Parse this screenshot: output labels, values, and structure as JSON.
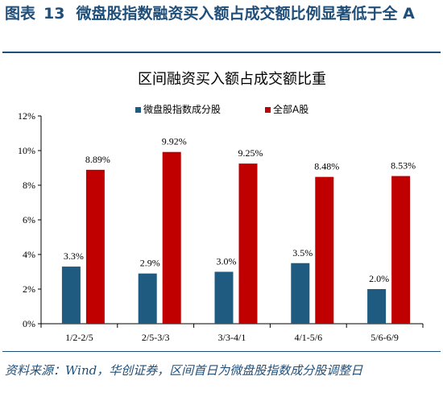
{
  "figure": {
    "label": "图表",
    "number": "13",
    "title": "微盘股指数融资买入额占成交额比例显著低于全 A"
  },
  "source": "资料来源：Wind，华创证券，区间首日为微盘股指数成分股调整日",
  "colors": {
    "series1": "#1f5b80",
    "series2": "#c00000",
    "header": "#1f4e79"
  },
  "chart_data": {
    "type": "bar",
    "title": "区间融资买入额占成交额比重",
    "categories": [
      "1/2-2/5",
      "2/5-3/3",
      "3/3-4/1",
      "4/1-5/6",
      "5/6-6/9"
    ],
    "series": [
      {
        "name": "微盘股指数成分股",
        "values": [
          3.3,
          2.9,
          3.0,
          3.5,
          2.0
        ],
        "labels": [
          "3.3%",
          "2.9%",
          "3.0%",
          "3.5%",
          "2.0%"
        ]
      },
      {
        "name": "全部A股",
        "values": [
          8.89,
          9.92,
          9.25,
          8.48,
          8.53
        ],
        "labels": [
          "8.89%",
          "9.92%",
          "9.25%",
          "8.48%",
          "8.53%"
        ]
      }
    ],
    "ylim": [
      0,
      12
    ],
    "yticks": [
      "0%",
      "2%",
      "4%",
      "6%",
      "8%",
      "10%",
      "12%"
    ],
    "ytick_values": [
      0,
      2,
      4,
      6,
      8,
      10,
      12
    ],
    "xlabel": "",
    "ylabel": "",
    "grid": false,
    "legend_position": "top"
  }
}
